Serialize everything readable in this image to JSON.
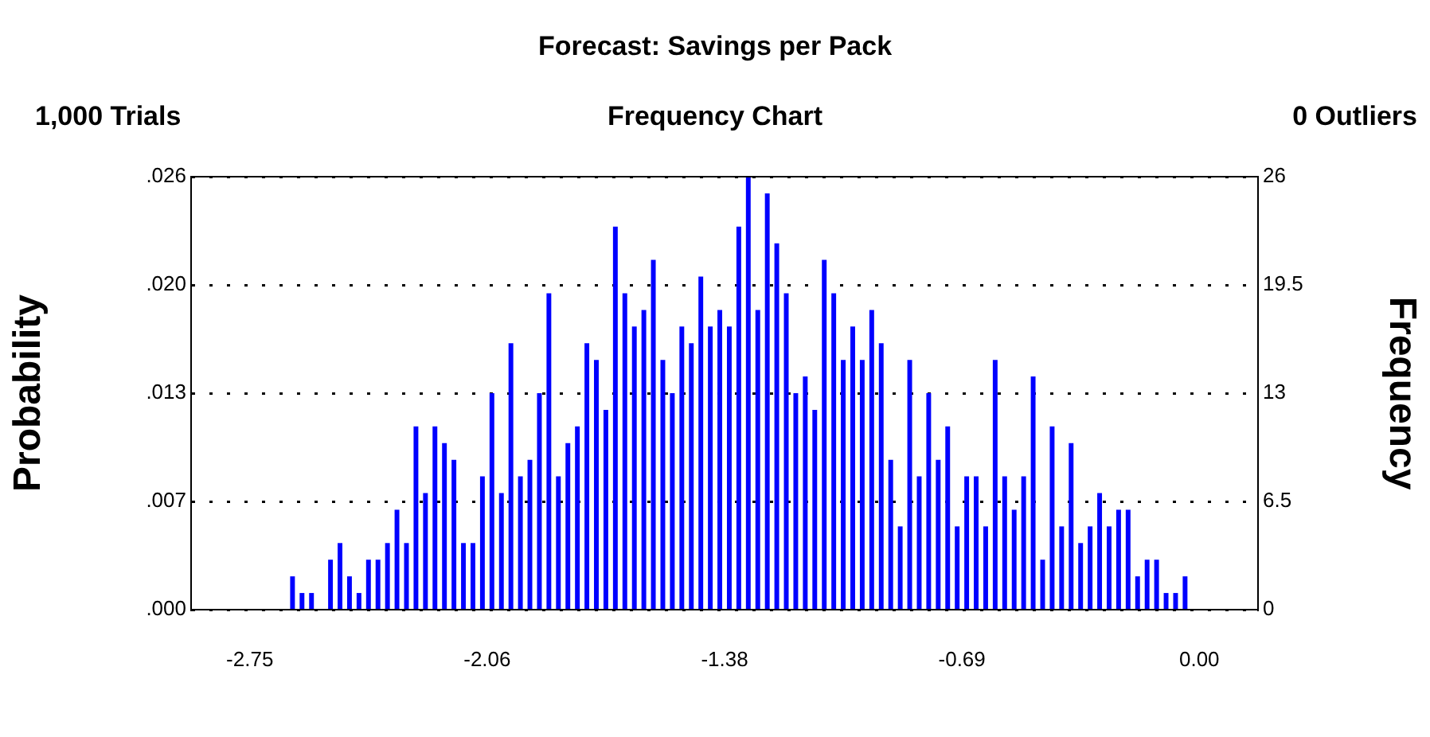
{
  "chart_data": {
    "type": "histogram",
    "title": "Forecast: Savings per Pack",
    "subtitle": "Frequency Chart",
    "annotations": [
      "1,000 Trials",
      "0 Outliers"
    ],
    "ylabel": "Probability",
    "y2label": "Frequency",
    "bins": [
      -2.75,
      -2.7225,
      -2.695,
      -2.6675,
      -2.64,
      -2.6125,
      -2.585,
      -2.5575,
      -2.53,
      -2.5025,
      -2.475,
      -2.4475,
      -2.42,
      -2.3925,
      -2.365,
      -2.3375,
      -2.31,
      -2.2825,
      -2.255,
      -2.2275,
      -2.2,
      -2.1725,
      -2.145,
      -2.1175,
      -2.09,
      -2.0625,
      -2.035,
      -2.0075,
      -1.98,
      -1.9525,
      -1.925,
      -1.8975,
      -1.87,
      -1.8425,
      -1.815,
      -1.7875,
      -1.76,
      -1.7325,
      -1.705,
      -1.6775,
      -1.65,
      -1.6225,
      -1.595,
      -1.5675,
      -1.54,
      -1.5125,
      -1.485,
      -1.4575,
      -1.43,
      -1.4025,
      -1.375,
      -1.3475,
      -1.32,
      -1.2925,
      -1.265,
      -1.2375,
      -1.21,
      -1.1825,
      -1.155,
      -1.1275,
      -1.1,
      -1.0725,
      -1.045,
      -1.0175,
      -0.99,
      -0.9625,
      -0.935,
      -0.9075,
      -0.88,
      -0.8525,
      -0.825,
      -0.7975,
      -0.77,
      -0.7425,
      -0.715,
      -0.6875,
      -0.66,
      -0.6325,
      -0.605,
      -0.5775,
      -0.55,
      -0.5225,
      -0.495,
      -0.4675,
      -0.44,
      -0.4125,
      -0.385,
      -0.3575,
      -0.33,
      -0.3025,
      -0.275,
      -0.2475,
      -0.22,
      -0.1925,
      -0.165,
      -0.1375,
      -0.11,
      -0.0825,
      -0.055,
      -0.0275,
      0
    ],
    "series": [
      {
        "color": "#0000ff",
        "axis": "y2",
        "values": [
          0,
          0,
          0,
          0,
          2,
          1,
          1,
          0,
          3,
          4,
          2,
          1,
          3,
          3,
          4,
          6,
          4,
          11,
          7,
          11,
          10,
          9,
          4,
          4,
          8,
          13,
          7,
          16,
          8,
          9,
          13,
          19,
          8,
          10,
          11,
          16,
          15,
          12,
          23,
          19,
          17,
          18,
          21,
          15,
          13,
          17,
          16,
          20,
          17,
          18,
          17,
          23,
          26,
          18,
          25,
          22,
          19,
          13,
          14,
          12,
          21,
          19,
          15,
          17,
          15,
          18,
          16,
          9,
          5,
          15,
          8,
          13,
          9,
          11,
          5,
          8,
          8,
          5,
          15,
          8,
          6,
          8,
          14,
          3,
          11,
          5,
          10,
          4,
          5,
          7,
          5,
          6,
          6,
          2,
          3,
          3,
          1,
          1,
          2,
          0
        ]
      }
    ],
    "xlim": [
      -2.92,
      0.17
    ],
    "xticks": [
      {
        "value": -2.75,
        "label": "-2.75"
      },
      {
        "value": -2.0625,
        "label": "-2.06"
      },
      {
        "value": -1.375,
        "label": "-1.38"
      },
      {
        "value": -0.6875,
        "label": "-0.69"
      },
      {
        "value": 0,
        "label": "0.00"
      }
    ],
    "ylim": [
      0,
      0.026
    ],
    "yticks": [
      {
        "value": 0,
        "label": ".000"
      },
      {
        "value": 0.0065,
        "label": ".007"
      },
      {
        "value": 0.013,
        "label": ".013"
      },
      {
        "value": 0.0195,
        "label": ".020"
      },
      {
        "value": 0.026,
        "label": ".026"
      }
    ],
    "y2lim": [
      0,
      26
    ],
    "y2ticks": [
      0,
      6.5,
      13,
      19.5,
      26
    ],
    "grid": "y"
  }
}
